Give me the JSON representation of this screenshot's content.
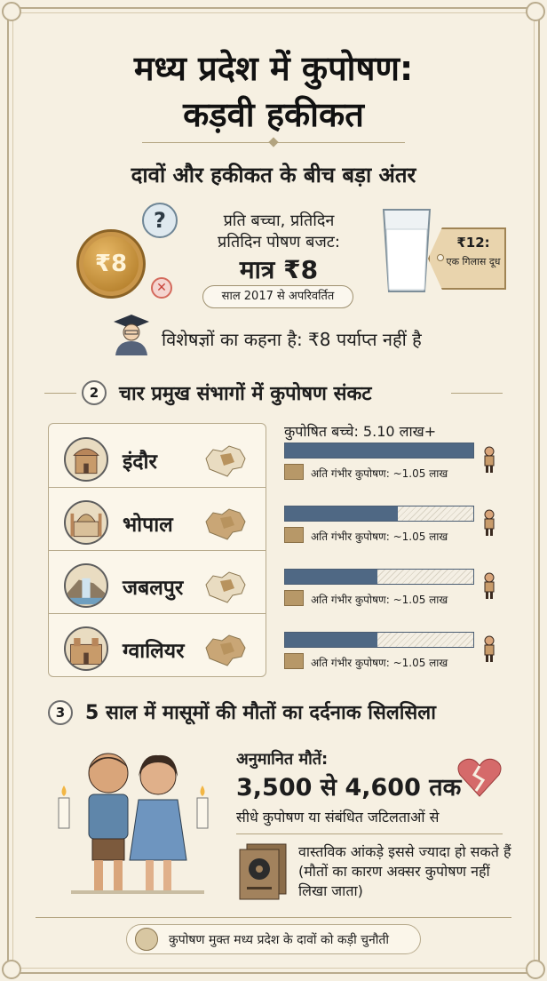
{
  "header": {
    "title_line1": "मध्य प्रदेश में कुपोषण:",
    "title_line2": "कड़वी हकीकत"
  },
  "section1": {
    "subtitle": "दावों और हकीकत के बीच बड़ा अंतर",
    "coin_label": "₹8",
    "question_mark": "?",
    "x_mark": "✕",
    "budget_line1": "प्रति बच्चा, प्रतिदिन",
    "budget_line2": "प्रतिदिन पोषण बजट:",
    "budget_amount": "मात्र ₹8",
    "unchanged_since": "साल 2017 से अपरिवर्तित",
    "tag_price": "₹12:",
    "tag_item": "एक गिलास दूध",
    "expert_statement": "विशेषज्ञों का कहना है: ₹8 पर्याप्त नहीं है",
    "icons": [
      "coin-icon",
      "question-bubble-icon",
      "x-icon",
      "milk-glass-icon",
      "price-tag-icon",
      "graduate-expert-icon"
    ]
  },
  "section2": {
    "number": "2",
    "title": "चार प्रमुख संभागों में कुपोषण संकट",
    "malnourished_header": "कुपोषित बच्चे: 5.10 लाख+",
    "regions": [
      {
        "name": "इंदौर",
        "fill_fraction": 1.0,
        "severe_label": "अति गंभीर कुपोषण: ~1.05 लाख",
        "icon": "palace-icon"
      },
      {
        "name": "भोपाल",
        "fill_fraction": 0.6,
        "severe_label": "अति गंभीर कुपोषण: ~1.05 लाख",
        "icon": "mosque-icon"
      },
      {
        "name": "जबलपुर",
        "fill_fraction": 0.49,
        "severe_label": "अति गंभीर कुपोषण: ~1.05 लाख",
        "icon": "waterfall-icon"
      },
      {
        "name": "ग्वालियर",
        "fill_fraction": 0.49,
        "severe_label": "अति गंभीर कुपोषण: ~1.05 लाख",
        "icon": "fort-icon"
      }
    ],
    "colors": {
      "bar_fill": "#4f6884",
      "legend": "#b79868"
    }
  },
  "section3": {
    "number": "3",
    "title": "5 साल में मासूमों की मौतों का दर्दनाक सिलसिला",
    "estimated_label": "अनुमानित मौतें:",
    "estimated_range": "3,500 से 4,600 तक",
    "cause": "सीधे कुपोषण या संबंधित जटिलताओं से",
    "note": "वास्तविक आंकड़े इससे ज्यादा हो सकते हैं (मौतों का कारण अक्सर कुपोषण नहीं लिखा जाता)",
    "icons": [
      "sad-children-icon",
      "candle-icon",
      "broken-heart-icon",
      "records-book-icon"
    ]
  },
  "footer": {
    "text": "कुपोषण मुक्त मध्य प्रदेश के दावों को कड़ी चुनौती",
    "icon": "seal-icon"
  }
}
